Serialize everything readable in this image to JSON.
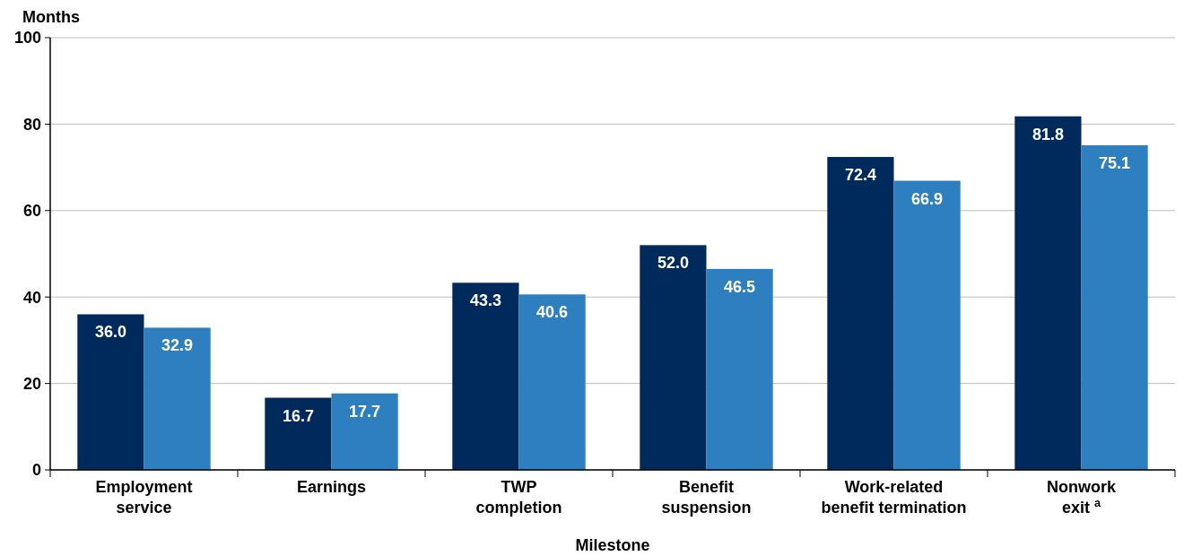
{
  "chart_data": {
    "type": "bar",
    "ylabel": "Months",
    "xlabel": "Milestone",
    "categories": [
      "Employment service",
      "Earnings",
      "TWP completion",
      "Benefit suspension",
      "Work-related benefit termination",
      "Nonwork exit $^{a}$"
    ],
    "series": [
      {
        "color": "#002a5c",
        "values": [
          36.0,
          16.7,
          43.3,
          52.0,
          72.4,
          81.8
        ],
        "value_labels": [
          "36.0",
          "16.7",
          "43.3",
          "52.0",
          "72.4",
          "81.8"
        ]
      },
      {
        "color": "#2e7fbf",
        "values": [
          32.9,
          17.7,
          40.6,
          46.5,
          66.9,
          75.1
        ],
        "value_labels": [
          "32.9",
          "17.7",
          "40.6",
          "46.5",
          "66.9",
          "75.1"
        ]
      }
    ],
    "ylim": [
      0,
      100
    ],
    "yticks": [
      0,
      20,
      40,
      60,
      80,
      100
    ],
    "grid": "y"
  }
}
